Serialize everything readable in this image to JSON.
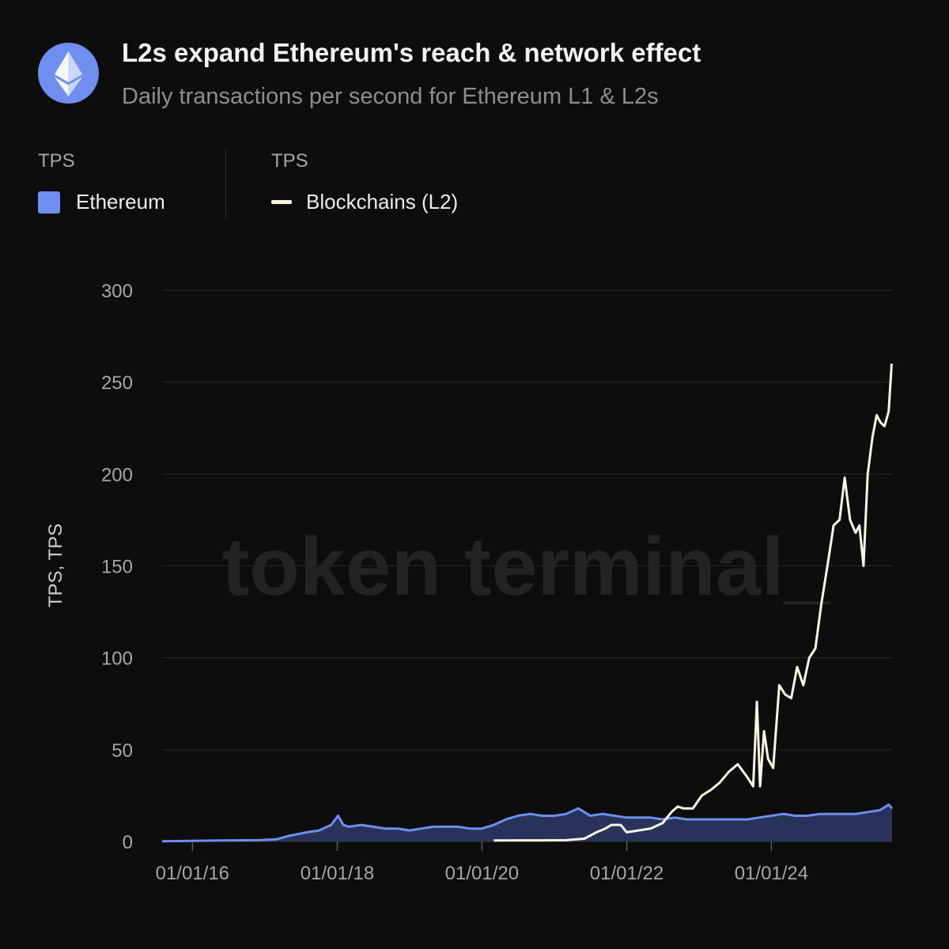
{
  "header": {
    "title": "L2s expand Ethereum's reach & network effect",
    "subtitle": "Daily transactions per second for Ethereum L1 & L2s",
    "logo_icon": "ethereum-icon"
  },
  "legend": {
    "group1_head": "TPS",
    "group1_label": "Ethereum",
    "group2_head": "TPS",
    "group2_label": "Blockchains (L2)"
  },
  "watermark": "token terminal_",
  "colors": {
    "background": "#0d0d0e",
    "ethereum": "#6f8ff0",
    "ethereum_area": "#29325a",
    "l2_line": "#fbf5e4",
    "grid": "#2a2a2c"
  },
  "chart_data": {
    "type": "area",
    "ylabel": "TPS, TPS",
    "xlabel": "",
    "ylim": [
      0,
      300
    ],
    "yticks": [
      "0",
      "50",
      "100",
      "150",
      "200",
      "250",
      "300"
    ],
    "xticks": [
      "01/01/16",
      "01/01/18",
      "01/01/20",
      "01/01/22",
      "01/01/24"
    ],
    "series": [
      {
        "name": "Ethereum",
        "type": "area",
        "points": [
          [
            "2015-08-01",
            0.1
          ],
          [
            "2016-01-01",
            0.3
          ],
          [
            "2016-06-01",
            0.5
          ],
          [
            "2016-12-01",
            0.7
          ],
          [
            "2017-03-01",
            1.2
          ],
          [
            "2017-05-01",
            3
          ],
          [
            "2017-08-01",
            5
          ],
          [
            "2017-10-01",
            6
          ],
          [
            "2017-12-01",
            9
          ],
          [
            "2018-01-05",
            14
          ],
          [
            "2018-02-01",
            9
          ],
          [
            "2018-03-01",
            8
          ],
          [
            "2018-05-01",
            9
          ],
          [
            "2018-07-01",
            8
          ],
          [
            "2018-09-01",
            7
          ],
          [
            "2018-11-01",
            7
          ],
          [
            "2019-01-01",
            6
          ],
          [
            "2019-03-01",
            7
          ],
          [
            "2019-05-01",
            8
          ],
          [
            "2019-07-01",
            8
          ],
          [
            "2019-09-01",
            8
          ],
          [
            "2019-11-01",
            7
          ],
          [
            "2020-01-01",
            7
          ],
          [
            "2020-03-01",
            9
          ],
          [
            "2020-05-01",
            12
          ],
          [
            "2020-07-01",
            14
          ],
          [
            "2020-09-01",
            15
          ],
          [
            "2020-11-01",
            14
          ],
          [
            "2021-01-01",
            14
          ],
          [
            "2021-03-01",
            15
          ],
          [
            "2021-05-01",
            18
          ],
          [
            "2021-07-01",
            14
          ],
          [
            "2021-09-01",
            15
          ],
          [
            "2021-11-01",
            14
          ],
          [
            "2022-01-01",
            13
          ],
          [
            "2022-03-01",
            13
          ],
          [
            "2022-05-01",
            13
          ],
          [
            "2022-07-01",
            12
          ],
          [
            "2022-09-01",
            13
          ],
          [
            "2022-11-01",
            12
          ],
          [
            "2023-01-01",
            12
          ],
          [
            "2023-03-01",
            12
          ],
          [
            "2023-05-01",
            12
          ],
          [
            "2023-07-01",
            12
          ],
          [
            "2023-09-01",
            12
          ],
          [
            "2023-11-01",
            13
          ],
          [
            "2024-01-01",
            14
          ],
          [
            "2024-03-01",
            15
          ],
          [
            "2024-05-01",
            14
          ],
          [
            "2024-07-01",
            14
          ],
          [
            "2024-09-01",
            15
          ],
          [
            "2024-11-01",
            15
          ],
          [
            "2025-01-01",
            15
          ],
          [
            "2025-03-01",
            15
          ],
          [
            "2025-05-01",
            16
          ],
          [
            "2025-07-01",
            17
          ],
          [
            "2025-08-15",
            20
          ],
          [
            "2025-09-01",
            18
          ]
        ]
      },
      {
        "name": "Blockchains (L2)",
        "type": "line",
        "points": [
          [
            "2020-03-01",
            0.5
          ],
          [
            "2020-07-01",
            0.6
          ],
          [
            "2020-11-01",
            0.6
          ],
          [
            "2021-03-01",
            0.7
          ],
          [
            "2021-06-01",
            1.5
          ],
          [
            "2021-08-01",
            5
          ],
          [
            "2021-09-15",
            7
          ],
          [
            "2021-10-15",
            9
          ],
          [
            "2021-12-01",
            9
          ],
          [
            "2022-01-01",
            5
          ],
          [
            "2022-03-01",
            6
          ],
          [
            "2022-05-01",
            7
          ],
          [
            "2022-07-01",
            10
          ],
          [
            "2022-08-15",
            16
          ],
          [
            "2022-09-15",
            19
          ],
          [
            "2022-10-15",
            18
          ],
          [
            "2022-12-01",
            18
          ],
          [
            "2023-01-15",
            25
          ],
          [
            "2023-03-01",
            28
          ],
          [
            "2023-04-15",
            32
          ],
          [
            "2023-06-01",
            38
          ],
          [
            "2023-07-15",
            42
          ],
          [
            "2023-09-01",
            35
          ],
          [
            "2023-10-01",
            30
          ],
          [
            "2023-10-20",
            76
          ],
          [
            "2023-11-05",
            30
          ],
          [
            "2023-11-25",
            60
          ],
          [
            "2023-12-15",
            45
          ],
          [
            "2024-01-10",
            40
          ],
          [
            "2024-02-10",
            85
          ],
          [
            "2024-03-10",
            80
          ],
          [
            "2024-04-10",
            78
          ],
          [
            "2024-05-10",
            95
          ],
          [
            "2024-06-10",
            85
          ],
          [
            "2024-07-10",
            100
          ],
          [
            "2024-08-10",
            105
          ],
          [
            "2024-09-10",
            130
          ],
          [
            "2024-10-10",
            150
          ],
          [
            "2024-11-10",
            172
          ],
          [
            "2024-12-10",
            175
          ],
          [
            "2025-01-05",
            198
          ],
          [
            "2025-02-01",
            175
          ],
          [
            "2025-03-01",
            168
          ],
          [
            "2025-03-20",
            172
          ],
          [
            "2025-04-10",
            150
          ],
          [
            "2025-05-01",
            200
          ],
          [
            "2025-05-25",
            220
          ],
          [
            "2025-06-15",
            232
          ],
          [
            "2025-07-05",
            228
          ],
          [
            "2025-07-25",
            226
          ],
          [
            "2025-08-15",
            234
          ],
          [
            "2025-08-30",
            260
          ]
        ]
      }
    ]
  }
}
